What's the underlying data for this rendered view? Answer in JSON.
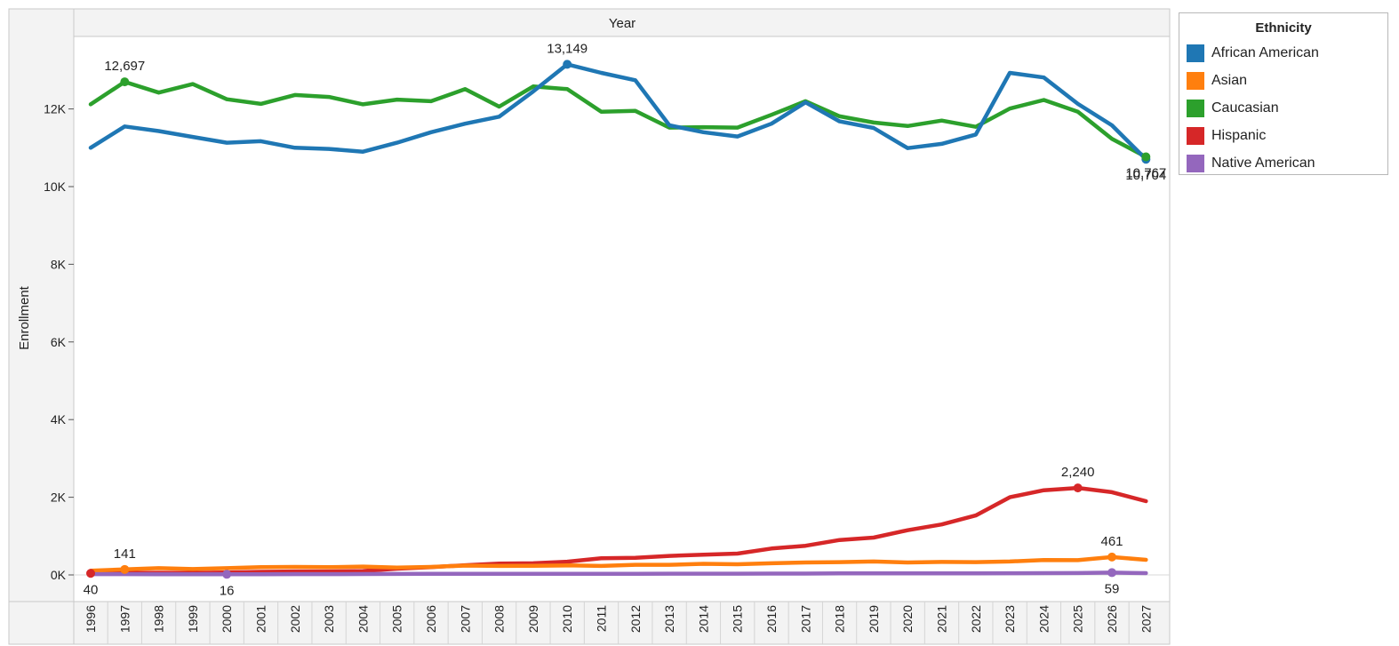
{
  "chart_data": {
    "type": "line",
    "title": "",
    "header": "Year",
    "xlabel": "",
    "ylabel": "Enrollment",
    "ylim": [
      0,
      14000
    ],
    "yticks": [
      0,
      2000,
      4000,
      6000,
      8000,
      10000,
      12000
    ],
    "ytick_labels": [
      "0K",
      "2K",
      "4K",
      "6K",
      "8K",
      "10K",
      "12K"
    ],
    "categories": [
      "1996",
      "1997",
      "1998",
      "1999",
      "2000",
      "2001",
      "2002",
      "2003",
      "2004",
      "2005",
      "2006",
      "2007",
      "2008",
      "2009",
      "2010",
      "2011",
      "2012",
      "2013",
      "2014",
      "2015",
      "2016",
      "2017",
      "2018",
      "2019",
      "2020",
      "2021",
      "2022",
      "2023",
      "2024",
      "2025",
      "2026",
      "2027"
    ],
    "grid": false,
    "legend": {
      "title": "Ethnicity",
      "placement": "right"
    },
    "series": [
      {
        "name": "African American",
        "color": "#1f77b4",
        "values": [
          11000,
          11550,
          11430,
          11280,
          11130,
          11170,
          11000,
          10970,
          10900,
          11130,
          11400,
          11620,
          11800,
          12450,
          13149,
          12930,
          12740,
          11580,
          11400,
          11290,
          11620,
          12170,
          11680,
          11510,
          10990,
          11100,
          11340,
          12930,
          12810,
          12130,
          11580,
          10704
        ]
      },
      {
        "name": "Asian",
        "color": "#ff7f0e",
        "values": [
          110,
          141,
          175,
          150,
          175,
          200,
          205,
          200,
          215,
          190,
          205,
          240,
          230,
          235,
          245,
          230,
          260,
          260,
          285,
          275,
          300,
          320,
          330,
          345,
          320,
          335,
          330,
          345,
          385,
          380,
          461,
          390
        ]
      },
      {
        "name": "Caucasian",
        "color": "#2ca02c",
        "values": [
          12120,
          12697,
          12420,
          12640,
          12250,
          12130,
          12360,
          12310,
          12120,
          12240,
          12200,
          12510,
          12060,
          12580,
          12510,
          11930,
          11950,
          11520,
          11530,
          11520,
          11850,
          12200,
          11810,
          11650,
          11560,
          11700,
          11540,
          12010,
          12230,
          11930,
          11230,
          10767
        ]
      },
      {
        "name": "Hispanic",
        "color": "#d62728",
        "values": [
          40,
          50,
          55,
          50,
          65,
          80,
          90,
          90,
          100,
          160,
          200,
          250,
          290,
          300,
          340,
          430,
          440,
          490,
          520,
          550,
          680,
          750,
          900,
          960,
          1150,
          1300,
          1530,
          2000,
          2180,
          2240,
          2130,
          1900
        ]
      },
      {
        "name": "Native American",
        "color": "#9467bd",
        "values": [
          20,
          20,
          18,
          17,
          16,
          18,
          20,
          20,
          22,
          25,
          28,
          30,
          30,
          30,
          30,
          28,
          30,
          32,
          33,
          33,
          35,
          35,
          38,
          40,
          40,
          40,
          42,
          44,
          45,
          47,
          59,
          45
        ]
      }
    ],
    "annotations": [
      {
        "series": "Caucasian",
        "category": "1997",
        "label": "12,697",
        "position": "above"
      },
      {
        "series": "African American",
        "category": "2010",
        "label": "13,149",
        "position": "above"
      },
      {
        "series": "Hispanic",
        "category": "2025",
        "label": "2,240",
        "position": "above"
      },
      {
        "series": "Asian",
        "category": "1997",
        "label": "141",
        "position": "above"
      },
      {
        "series": "Asian",
        "category": "2026",
        "label": "461",
        "position": "above"
      },
      {
        "series": "Hispanic",
        "category": "1996",
        "label": "40",
        "position": "below"
      },
      {
        "series": "Native American",
        "category": "2000",
        "label": "16",
        "position": "below"
      },
      {
        "series": "Native American",
        "category": "2026",
        "label": "59",
        "position": "below"
      },
      {
        "series": "African American",
        "category": "2027",
        "label": "10,704",
        "position": "below"
      },
      {
        "series": "Caucasian",
        "category": "2027",
        "label": "10,767",
        "position": "below"
      }
    ]
  }
}
